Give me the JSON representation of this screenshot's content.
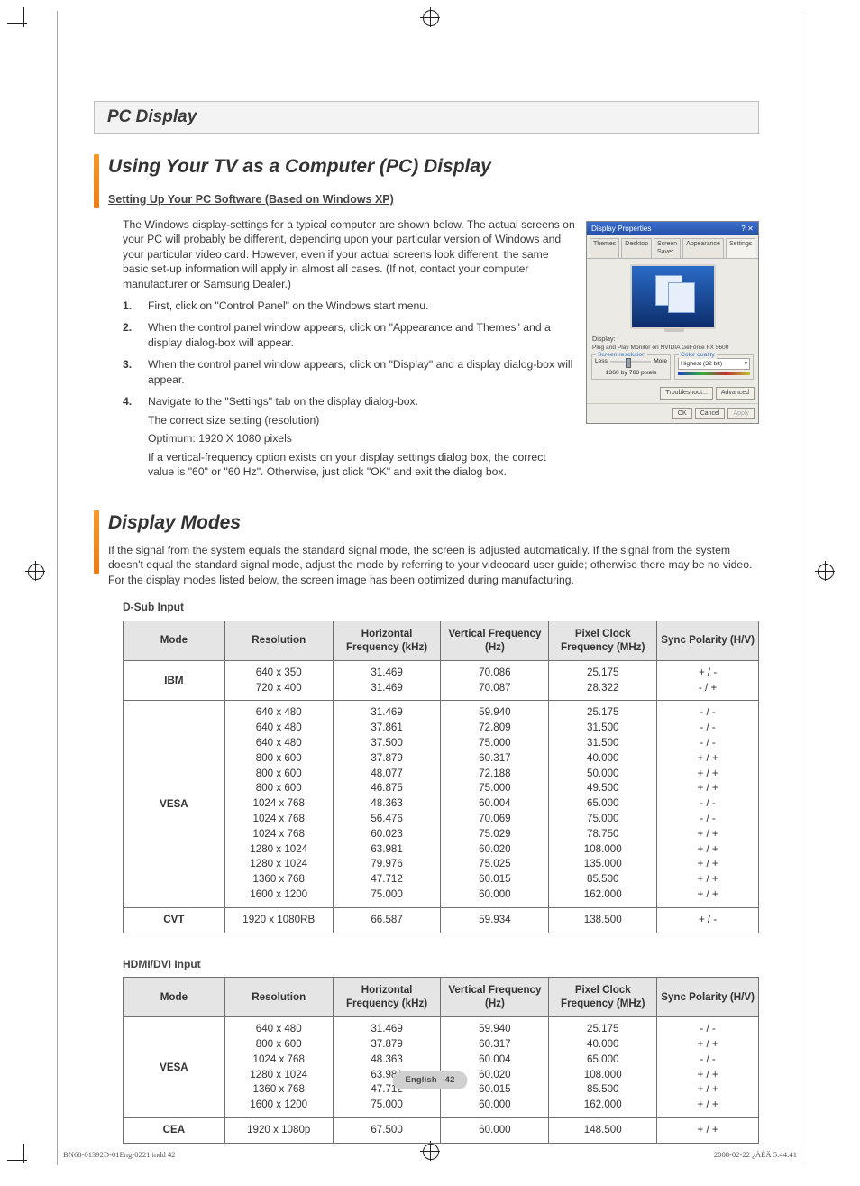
{
  "section_bar_title": "PC Display",
  "heading1": "Using Your TV as a Computer (PC) Display",
  "setup_sub": "Setting Up Your PC Software (Based on Windows XP)",
  "intro_para": "The Windows display-settings for a typical computer are shown below. The actual screens on your PC will probably be different, depending upon your particular version of Windows and your particular video card. However, even if your actual screens look different, the same basic set-up information will apply in almost all cases. (If not, contact your computer manufacturer or Samsung Dealer.)",
  "steps": [
    {
      "n": "1.",
      "t": "First, click on \"Control Panel\" on the Windows start menu."
    },
    {
      "n": "2.",
      "t": "When the control panel window appears, click on \"Appearance and Themes\" and a display dialog-box will appear."
    },
    {
      "n": "3.",
      "t": "When the control panel window appears, click on \"Display\" and a display dialog-box will appear."
    },
    {
      "n": "4.",
      "t": "Navigate to the \"Settings\" tab on the display dialog-box.",
      "subs": [
        "The correct size setting (resolution)",
        "Optimum: 1920 X 1080 pixels",
        "If a vertical-frequency option exists on your display settings dialog box, the correct value is \"60\" or \"60 Hz\". Otherwise, just click \"OK\" and exit the dialog box."
      ]
    }
  ],
  "screenshot": {
    "title": "Display Properties",
    "tabs": [
      "Themes",
      "Desktop",
      "Screen Saver",
      "Appearance",
      "Settings"
    ],
    "active_tab": "Settings",
    "display_label": "Display:",
    "display_name": "Plug and Play Monitor on NVIDIA GeForce FX 5600",
    "grp_res": "Screen resolution",
    "less": "Less",
    "more": "More",
    "res_val": "1360 by 768 pixels",
    "grp_col": "Color quality",
    "col_val": "Highest (32 bit)",
    "btn_trouble": "Troubleshoot...",
    "btn_adv": "Advanced",
    "btn_ok": "OK",
    "btn_cancel": "Cancel",
    "btn_apply": "Apply"
  },
  "heading2": "Display Modes",
  "modes_para": "If the signal from the system equals the standard signal mode, the screen is adjusted automatically. If the signal from the system doesn't equal the standard signal mode, adjust the mode by referring to your videocard user guide; otherwise there may be no video. For the display modes listed below, the screen image has been optimized during manufacturing.",
  "dsub_label": "D-Sub Input",
  "hdmi_label": "HDMI/DVI Input",
  "columns": [
    "Mode",
    "Resolution",
    "Horizontal Frequency (kHz)",
    "Vertical Frequency (Hz)",
    "Pixel Clock Frequency (MHz)",
    "Sync Polarity (H/V)"
  ],
  "dsub_rows": [
    {
      "mode": "IBM",
      "res": [
        "640 x 350",
        "720 x 400"
      ],
      "hf": [
        "31.469",
        "31.469"
      ],
      "vf": [
        "70.086",
        "70.087"
      ],
      "pc": [
        "25.175",
        "28.322"
      ],
      "sp": [
        "+ / -",
        "- / +"
      ]
    },
    {
      "mode": "VESA",
      "res": [
        "640 x 480",
        "640 x 480",
        "640 x 480",
        "800 x 600",
        "800 x 600",
        "800 x 600",
        "1024 x 768",
        "1024 x 768",
        "1024 x 768",
        "1280 x 1024",
        "1280 x 1024",
        "1360 x 768",
        "1600 x 1200"
      ],
      "hf": [
        "31.469",
        "37.861",
        "37.500",
        "37.879",
        "48.077",
        "46.875",
        "48.363",
        "56.476",
        "60.023",
        "63.981",
        "79.976",
        "47.712",
        "75.000"
      ],
      "vf": [
        "59.940",
        "72.809",
        "75.000",
        "60.317",
        "72.188",
        "75.000",
        "60.004",
        "70.069",
        "75.029",
        "60.020",
        "75.025",
        "60.015",
        "60.000"
      ],
      "pc": [
        "25.175",
        "31.500",
        "31.500",
        "40.000",
        "50.000",
        "49.500",
        "65.000",
        "75.000",
        "78.750",
        "108.000",
        "135.000",
        "85.500",
        "162.000"
      ],
      "sp": [
        "- / -",
        "- / -",
        "- / -",
        "+ / +",
        "+ / +",
        "+ / +",
        "- / -",
        "- / -",
        "+ / +",
        "+ / +",
        "+ / +",
        "+ / +",
        "+ / +"
      ]
    },
    {
      "mode": "CVT",
      "res": [
        "1920 x 1080RB"
      ],
      "hf": [
        "66.587"
      ],
      "vf": [
        "59.934"
      ],
      "pc": [
        "138.500"
      ],
      "sp": [
        "+ / -"
      ]
    }
  ],
  "hdmi_rows": [
    {
      "mode": "VESA",
      "res": [
        "640 x 480",
        "800 x 600",
        "1024 x 768",
        "1280 x 1024",
        "1360 x 768",
        "1600 x 1200"
      ],
      "hf": [
        "31.469",
        "37.879",
        "48.363",
        "63.981",
        "47.712",
        "75.000"
      ],
      "vf": [
        "59.940",
        "60.317",
        "60.004",
        "60.020",
        "60.015",
        "60.000"
      ],
      "pc": [
        "25.175",
        "40.000",
        "65.000",
        "108.000",
        "85.500",
        "162.000"
      ],
      "sp": [
        "- / -",
        "+ / +",
        "- / -",
        "+ / +",
        "+ / +",
        "+ / +"
      ]
    },
    {
      "mode": "CEA",
      "res": [
        "1920 x 1080p"
      ],
      "hf": [
        "67.500"
      ],
      "vf": [
        "60.000"
      ],
      "pc": [
        "148.500"
      ],
      "sp": [
        "+ / +"
      ]
    }
  ],
  "page_num": "English - 42",
  "footer_left": "BN68-01392D-01Eng-0221.indd   42",
  "footer_right": "2008-02-22   ¿ÀÈÄ 5:44:41",
  "palette": {
    "accent": "#ef7d12",
    "header_bg": "#e5e5e5",
    "border": "#707070"
  }
}
